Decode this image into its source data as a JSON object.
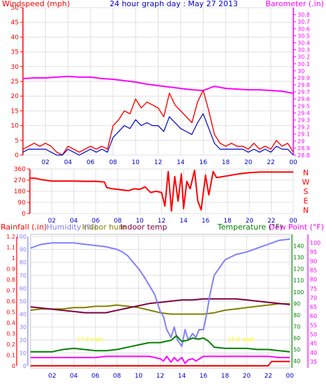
{
  "chart_data": [
    {
      "id": "wind",
      "type": "line",
      "title": "24 hour graph day : May 27 2013",
      "ylabel_left": "Windspeed (mph)",
      "ylabel_right": "Barometer (.in)",
      "x_ticks": [
        "02",
        "04",
        "06",
        "08",
        "10",
        "12",
        "14",
        "16",
        "18",
        "20",
        "22",
        "00"
      ],
      "ylim_left": [
        0,
        50
      ],
      "y_ticks_left": [
        0,
        5,
        10,
        15,
        20,
        25,
        30,
        35,
        40,
        45,
        50
      ],
      "ylim_right": [
        28.8,
        30.9
      ],
      "y_ticks_right": [
        "28.8",
        "28.9",
        "29",
        "29.1",
        "29.2",
        "29.3",
        "29.4",
        "29.5",
        "29.6",
        "29.7",
        "29.8",
        "29.9",
        "30",
        "30.1",
        "30.2",
        "30.3",
        "30.4",
        "30.5",
        "30.6",
        "30.7",
        "30.8"
      ],
      "grid": true,
      "colors": {
        "gust": "#ff0000",
        "speed": "#0000cc",
        "barometer": "#ff00ff",
        "left_axis": "#ff0000",
        "right_axis": "#ff00ff",
        "title": "#0000cc"
      },
      "series": [
        {
          "key": "gust",
          "color": "#ff0000",
          "x": [
            0,
            0.5,
            1,
            1.5,
            2,
            2.5,
            3,
            3.5,
            4,
            4.5,
            5,
            5.5,
            6,
            6.5,
            7,
            7.5,
            8,
            8.5,
            9,
            9.5,
            10,
            10.5,
            11,
            11.5,
            12,
            12.5,
            13,
            13.5,
            14,
            14.5,
            15,
            15.5,
            16,
            16.5,
            17,
            17.5,
            18,
            18.5,
            19,
            19.5,
            20,
            20.5,
            21,
            21.5,
            22,
            22.5,
            23,
            23.5,
            24
          ],
          "values": [
            2,
            3,
            4,
            3,
            4,
            3,
            1,
            0,
            3,
            2,
            1,
            2,
            3,
            2,
            3,
            2,
            10,
            12,
            15,
            14,
            19,
            16,
            18,
            17,
            16,
            13,
            21,
            17,
            15,
            13,
            11,
            18,
            22,
            15,
            7,
            4,
            3,
            4,
            3,
            3,
            2,
            4,
            2,
            3,
            2,
            5,
            3,
            4,
            1
          ]
        },
        {
          "key": "speed",
          "color": "#0000cc",
          "x": [
            0,
            0.5,
            1,
            1.5,
            2,
            2.5,
            3,
            3.5,
            4,
            4.5,
            5,
            5.5,
            6,
            6.5,
            7,
            7.5,
            8,
            8.5,
            9,
            9.5,
            10,
            10.5,
            11,
            11.5,
            12,
            12.5,
            13,
            13.5,
            14,
            14.5,
            15,
            15.5,
            16,
            16.5,
            17,
            17.5,
            18,
            18.5,
            19,
            19.5,
            20,
            20.5,
            21,
            21.5,
            22,
            22.5,
            23,
            23.5,
            24
          ],
          "values": [
            1,
            2,
            2,
            2,
            2,
            1,
            0,
            0,
            2,
            1,
            0,
            1,
            2,
            1,
            2,
            1,
            6,
            8,
            10,
            9,
            12,
            10,
            11,
            10,
            10,
            8,
            13,
            11,
            9,
            8,
            7,
            11,
            14,
            9,
            4,
            2,
            2,
            2,
            2,
            2,
            1,
            2,
            1,
            2,
            1,
            3,
            2,
            2,
            0
          ]
        },
        {
          "key": "barometer",
          "color": "#ff00ff",
          "x": [
            0,
            1,
            2,
            3,
            4,
            5,
            6,
            7,
            8,
            9,
            10,
            11,
            12,
            13,
            14,
            15,
            16,
            17,
            18,
            19,
            20,
            21,
            22,
            23,
            24
          ],
          "values": [
            29.89,
            29.9,
            29.9,
            29.91,
            29.92,
            29.91,
            29.91,
            29.89,
            29.88,
            29.86,
            29.84,
            29.81,
            29.79,
            29.77,
            29.75,
            29.73,
            29.72,
            29.78,
            29.75,
            29.74,
            29.73,
            29.73,
            29.72,
            29.71,
            29.68
          ]
        }
      ]
    },
    {
      "id": "direction",
      "type": "line",
      "ylabel_right": "N W S E N",
      "compass_labels": [
        "N",
        "W",
        "S",
        "E",
        "N"
      ],
      "x_ticks": [
        "02",
        "04",
        "06",
        "08",
        "10",
        "12",
        "14",
        "16",
        "18",
        "20",
        "22",
        "00"
      ],
      "ylim": [
        0,
        360
      ],
      "y_ticks": [
        0,
        90,
        180,
        270,
        360
      ],
      "colors": {
        "line": "#ff0000"
      },
      "series": [
        {
          "key": "wind_dir",
          "color": "#ff0000",
          "x": [
            0,
            0.5,
            1,
            2,
            3,
            4,
            5,
            6,
            6.8,
            7,
            7.5,
            8,
            8.5,
            9,
            9.5,
            10,
            10.5,
            11,
            11.5,
            12,
            12.3,
            12.6,
            12.9,
            13.2,
            13.5,
            13.8,
            14,
            14.3,
            14.6,
            15,
            15.3,
            15.6,
            16,
            16.3,
            16.7,
            17,
            18,
            19,
            20,
            21,
            22,
            23,
            24
          ],
          "values": [
            285,
            285,
            275,
            262,
            262,
            262,
            260,
            260,
            255,
            210,
            200,
            195,
            190,
            185,
            200,
            195,
            215,
            170,
            180,
            170,
            60,
            340,
            20,
            300,
            100,
            320,
            40,
            260,
            200,
            350,
            100,
            30,
            310,
            150,
            340,
            290,
            305,
            320,
            330,
            335,
            335,
            335,
            335
          ]
        }
      ]
    },
    {
      "id": "environment",
      "type": "line",
      "labels_left": [
        "Rainfall (.in)",
        "Humidity (%)",
        "Indoor hum",
        "Indoor temp"
      ],
      "labels_right": [
        "Temperature (°F)",
        "Dew Point (°F)"
      ],
      "x_ticks": [
        "02",
        "04",
        "06",
        "08",
        "10",
        "12",
        "14",
        "16",
        "18",
        "20",
        "22",
        "00"
      ],
      "rain_ticks": [
        "0",
        "0.1",
        "0.2",
        "0.3",
        "0.4",
        "0.5",
        "0.6",
        "0.7",
        "0.8",
        "0.9",
        "1",
        "1.1",
        "1.2"
      ],
      "humidity_ticks": [
        0,
        10,
        20,
        30,
        40,
        50,
        60,
        70,
        80,
        90,
        100
      ],
      "temperature_ticks": [
        40,
        50,
        60,
        70,
        80,
        90,
        100,
        110,
        120,
        130,
        140
      ],
      "dewpoint_ticks": [
        35,
        40,
        45,
        50,
        55,
        60,
        65,
        70,
        75,
        80,
        85,
        90,
        95,
        100
      ],
      "ylim_rain": [
        0,
        1.2
      ],
      "ylim_humidity": [
        0,
        100
      ],
      "ylim_temperature": [
        34,
        150
      ],
      "annotations": [
        {
          "text": "17.6 mph",
          "x": 5.5,
          "y_rain": 0.25
        },
        {
          "text": "15.9 mph",
          "x": 19.5,
          "y_rain": 0.25
        }
      ],
      "colors": {
        "rain": "#ff0000",
        "humidity": "#8080ff",
        "indoor_hum": "#808000",
        "indoor_temp": "#800040",
        "temperature": "#008000",
        "dew_point": "#ff00ff",
        "annotation": "#ffff00"
      },
      "series": [
        {
          "key": "humidity",
          "color": "#8080ff",
          "x": [
            0,
            1,
            2,
            3,
            4,
            5,
            6,
            7,
            8,
            8.5,
            9,
            9.5,
            10,
            10.5,
            11,
            11.5,
            12,
            12.3,
            12.6,
            13,
            13.3,
            13.6,
            14,
            14.3,
            14.6,
            15,
            15.3,
            15.6,
            16,
            16.3,
            16.6,
            17,
            18,
            19,
            20,
            21,
            22,
            23,
            24
          ],
          "values": [
            91,
            94,
            95,
            95,
            95,
            94,
            93,
            92,
            90,
            88,
            85,
            80,
            75,
            69,
            62,
            55,
            42,
            38,
            28,
            22,
            30,
            20,
            15,
            28,
            20,
            25,
            22,
            28,
            28,
            40,
            55,
            70,
            82,
            86,
            88,
            91,
            94,
            97,
            98
          ]
        },
        {
          "key": "indoor_hum",
          "color": "#808000",
          "x": [
            0,
            1,
            2,
            3,
            4,
            5,
            6,
            7,
            8,
            9,
            10,
            11,
            12,
            13,
            14,
            15,
            16,
            17,
            18,
            19,
            20,
            21,
            22,
            23,
            24
          ],
          "values": [
            43,
            44,
            44,
            44,
            45,
            45,
            46,
            46,
            47,
            46,
            45,
            43,
            41,
            40,
            40,
            40,
            40,
            41,
            43,
            44,
            45,
            46,
            47,
            48,
            48
          ]
        },
        {
          "key": "indoor_temp",
          "color": "#800040",
          "x": [
            0,
            1,
            2,
            3,
            4,
            5,
            6,
            7,
            8,
            9,
            10,
            11,
            12,
            13,
            14,
            15,
            16,
            17,
            18,
            19,
            20,
            21,
            22,
            23,
            24
          ],
          "values": [
            87,
            86,
            85,
            84,
            83,
            82,
            82,
            82,
            84,
            86,
            88,
            90,
            91,
            92,
            93,
            93,
            94,
            94,
            94,
            94,
            93,
            92,
            91,
            90,
            89
          ]
        },
        {
          "key": "temperature",
          "color": "#008000",
          "x": [
            0,
            1,
            2,
            3,
            4,
            5,
            6,
            7,
            8,
            9,
            10,
            11,
            11.5,
            12,
            12.5,
            13,
            13.5,
            14,
            14.5,
            15,
            15.5,
            16,
            16.5,
            17,
            18,
            19,
            20,
            21,
            22,
            23,
            24
          ],
          "values": [
            48,
            48,
            48,
            50,
            51,
            50,
            49,
            49,
            50,
            52,
            54,
            56,
            56,
            56,
            57,
            58,
            62,
            57,
            58,
            60,
            59,
            60,
            57,
            52,
            51,
            51,
            51,
            50,
            50,
            49,
            48
          ]
        },
        {
          "key": "dew_point",
          "color": "#ff00ff",
          "x": [
            0,
            1,
            2,
            3,
            4,
            5,
            6,
            7,
            8,
            9,
            10,
            11,
            12,
            12.3,
            12.6,
            13,
            13.3,
            13.6,
            14,
            14.3,
            14.6,
            15,
            15.3,
            16,
            17,
            18,
            19,
            20,
            21,
            22,
            23,
            24
          ],
          "values": [
            43,
            43,
            43,
            43,
            43,
            43,
            43,
            44,
            44,
            44,
            44,
            44,
            42,
            40,
            44,
            39,
            43,
            40,
            43,
            38,
            41,
            42,
            40,
            44,
            44,
            44,
            44,
            44,
            44,
            44,
            43,
            43
          ]
        },
        {
          "key": "rain",
          "color": "#ff0000",
          "x": [
            0,
            22,
            22.3,
            24
          ],
          "values": [
            0,
            0,
            0.04,
            0.04
          ]
        }
      ]
    }
  ]
}
